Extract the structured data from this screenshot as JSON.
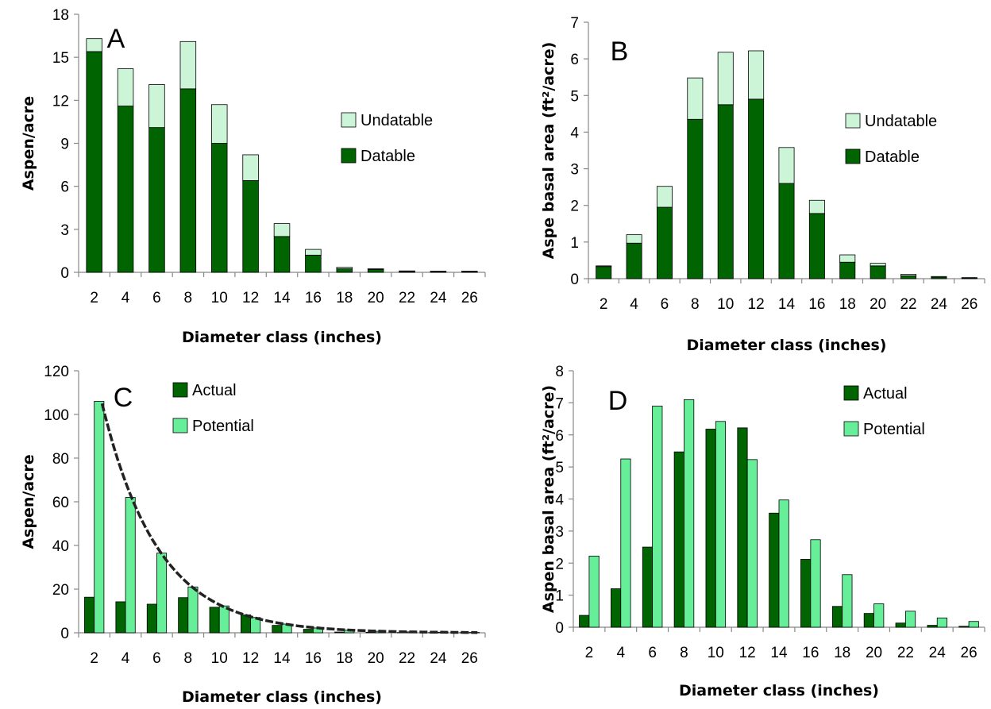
{
  "chart_data": [
    {
      "panel": "A",
      "type": "bar",
      "stacked": true,
      "categories": [
        "2",
        "4",
        "6",
        "8",
        "10",
        "12",
        "14",
        "16",
        "18",
        "20",
        "22",
        "24",
        "26"
      ],
      "series": [
        {
          "name": "Datable",
          "color": "#006400",
          "values": [
            15.4,
            11.6,
            10.1,
            12.8,
            9.0,
            6.4,
            2.5,
            1.2,
            0.25,
            0.2,
            0.06,
            0.05,
            0.05
          ]
        },
        {
          "name": "Undatable",
          "color": "#ccf5d8",
          "values": [
            0.9,
            2.6,
            3.0,
            3.3,
            2.7,
            1.8,
            0.9,
            0.4,
            0.1,
            0.05,
            0.04,
            0.03,
            0.03
          ]
        }
      ],
      "legend_order": [
        "Undatable",
        "Datable"
      ],
      "legend_position": "right",
      "xlabel": "Diameter class (inches)",
      "ylabel": "Aspen/acre",
      "ylim": [
        0,
        18
      ],
      "yticks": [
        "0",
        "3",
        "6",
        "9",
        "12",
        "15",
        "18"
      ],
      "grid": false
    },
    {
      "panel": "B",
      "type": "bar",
      "stacked": true,
      "categories": [
        "2",
        "4",
        "6",
        "8",
        "10",
        "12",
        "14",
        "16",
        "18",
        "20",
        "22",
        "24",
        "26"
      ],
      "series": [
        {
          "name": "Datable",
          "color": "#006400",
          "values": [
            0.33,
            0.97,
            1.95,
            4.35,
            4.75,
            4.9,
            2.6,
            1.78,
            0.45,
            0.35,
            0.08,
            0.04,
            0.02
          ]
        },
        {
          "name": "Undatable",
          "color": "#ccf5d8",
          "values": [
            0.02,
            0.23,
            0.57,
            1.13,
            1.43,
            1.32,
            0.98,
            0.36,
            0.2,
            0.07,
            0.04,
            0.02,
            0.01
          ]
        }
      ],
      "legend_order": [
        "Undatable",
        "Datable"
      ],
      "legend_position": "right",
      "xlabel": "Diameter class (inches)",
      "ylabel": "Aspe basal area (ft²/acre)",
      "ylim": [
        0,
        7
      ],
      "yticks": [
        "0",
        "1",
        "2",
        "3",
        "4",
        "5",
        "6",
        "7"
      ],
      "grid": false
    },
    {
      "panel": "C",
      "type": "bar",
      "stacked": false,
      "categories": [
        "2",
        "4",
        "6",
        "8",
        "10",
        "12",
        "14",
        "16",
        "18",
        "20",
        "22",
        "24",
        "26"
      ],
      "series": [
        {
          "name": "Actual",
          "color": "#006400",
          "values": [
            16.3,
            14.2,
            13.1,
            16.1,
            11.7,
            8.2,
            3.4,
            1.6,
            0.35,
            0.25,
            0.1,
            0.08,
            0.08
          ]
        },
        {
          "name": "Potential",
          "color": "#66ee99",
          "values": [
            106.0,
            62.0,
            36.5,
            21.0,
            12.3,
            7.0,
            4.0,
            2.2,
            1.2,
            0.7,
            0.4,
            0.25,
            0.15
          ]
        }
      ],
      "trendline": {
        "style": "dashed",
        "type": "exponential",
        "x": [
          2.5,
          4.5,
          6.5,
          8.5,
          10.5,
          12.5,
          14.5,
          16.5,
          18.5,
          20.5,
          22.5,
          24.5,
          26.5
        ],
        "y": [
          105,
          60,
          36,
          21,
          12,
          7,
          4,
          2.2,
          1.3,
          0.8,
          0.5,
          0.3,
          0.2
        ]
      },
      "legend_order": [
        "Actual",
        "Potential"
      ],
      "legend_position": "top",
      "xlabel": "Diameter class (inches)",
      "ylabel": "Aspen/acre",
      "ylim": [
        0,
        120
      ],
      "yticks": [
        "0",
        "20",
        "40",
        "60",
        "80",
        "100",
        "120"
      ],
      "grid": false
    },
    {
      "panel": "D",
      "type": "bar",
      "stacked": false,
      "categories": [
        "2",
        "4",
        "6",
        "8",
        "10",
        "12",
        "14",
        "16",
        "18",
        "20",
        "22",
        "24",
        "26"
      ],
      "series": [
        {
          "name": "Actual",
          "color": "#006400",
          "values": [
            0.37,
            1.2,
            2.5,
            5.47,
            6.18,
            6.22,
            3.56,
            2.12,
            0.65,
            0.43,
            0.13,
            0.06,
            0.03
          ]
        },
        {
          "name": "Potential",
          "color": "#66ee99",
          "values": [
            2.22,
            5.25,
            6.9,
            7.1,
            6.42,
            5.23,
            3.97,
            2.73,
            1.64,
            0.73,
            0.5,
            0.29,
            0.18
          ]
        }
      ],
      "legend_order": [
        "Actual",
        "Potential"
      ],
      "legend_position": "right",
      "xlabel": "Diameter class (inches)",
      "ylabel": "Aspen basal area (ft²/acre)",
      "ylim": [
        0,
        8
      ],
      "yticks": [
        "0",
        "1",
        "2",
        "3",
        "4",
        "5",
        "6",
        "7",
        "8"
      ],
      "grid": false
    }
  ]
}
